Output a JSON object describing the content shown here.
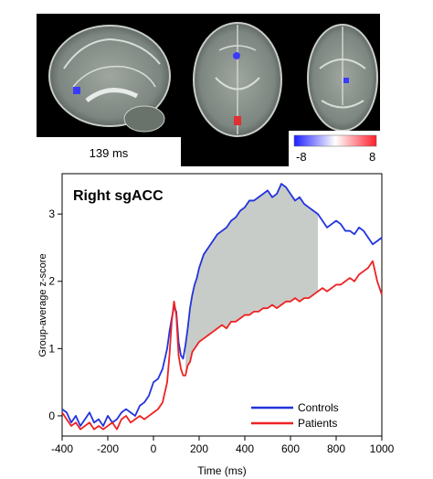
{
  "brain_panel": {
    "time_label": "139 ms",
    "colorbar": {
      "min_label": "-8",
      "max_label": "8",
      "low_color": "#1f1fff",
      "high_color": "#ff1f2d"
    }
  },
  "chart_data": {
    "type": "line",
    "title": "Right sgACC",
    "xlabel": "Time (ms)",
    "ylabel": "Group-average z-score",
    "xlim": [
      -400,
      1000
    ],
    "ylim": [
      -0.3,
      3.6
    ],
    "xticks": [
      -400,
      -200,
      0,
      200,
      400,
      600,
      800,
      1000
    ],
    "yticks": [
      0,
      1,
      2,
      3
    ],
    "legend_position": "bottom-right",
    "grid": false,
    "shaded_region": {
      "x_range": [
        139,
        730
      ],
      "color": "#c8ccc8",
      "between_series": [
        "Controls",
        "Patients"
      ]
    },
    "series": [
      {
        "name": "Controls",
        "color": "#2233dd",
        "x": [
          -400,
          -380,
          -360,
          -340,
          -320,
          -300,
          -280,
          -260,
          -240,
          -220,
          -200,
          -180,
          -160,
          -140,
          -120,
          -100,
          -80,
          -60,
          -40,
          -20,
          0,
          20,
          40,
          60,
          70,
          80,
          90,
          100,
          110,
          120,
          130,
          140,
          150,
          160,
          170,
          180,
          190,
          200,
          220,
          240,
          260,
          280,
          300,
          320,
          340,
          360,
          380,
          400,
          420,
          440,
          460,
          480,
          500,
          520,
          540,
          560,
          580,
          600,
          620,
          640,
          660,
          680,
          700,
          720,
          740,
          760,
          780,
          800,
          820,
          840,
          860,
          880,
          900,
          920,
          940,
          960,
          980,
          1000
        ],
        "y": [
          0.1,
          0.05,
          -0.1,
          0.0,
          -0.15,
          -0.05,
          0.05,
          -0.1,
          -0.05,
          -0.15,
          0.0,
          -0.1,
          -0.05,
          0.05,
          0.1,
          0.05,
          0.0,
          0.15,
          0.2,
          0.3,
          0.5,
          0.55,
          0.7,
          1.0,
          1.25,
          1.45,
          1.62,
          1.55,
          1.1,
          0.9,
          0.85,
          1.05,
          1.3,
          1.6,
          1.8,
          1.95,
          2.05,
          2.2,
          2.4,
          2.5,
          2.6,
          2.7,
          2.75,
          2.8,
          2.9,
          2.95,
          3.05,
          3.1,
          3.2,
          3.2,
          3.25,
          3.3,
          3.35,
          3.25,
          3.3,
          3.45,
          3.4,
          3.3,
          3.2,
          3.25,
          3.15,
          3.1,
          3.05,
          3.0,
          2.9,
          2.8,
          2.85,
          2.9,
          2.85,
          2.75,
          2.75,
          2.7,
          2.8,
          2.75,
          2.65,
          2.55,
          2.6,
          2.65
        ]
      },
      {
        "name": "Patients",
        "color": "#ee2222",
        "x": [
          -400,
          -380,
          -360,
          -340,
          -320,
          -300,
          -280,
          -260,
          -240,
          -220,
          -200,
          -180,
          -160,
          -140,
          -120,
          -100,
          -80,
          -60,
          -40,
          -20,
          0,
          20,
          40,
          60,
          70,
          80,
          90,
          100,
          110,
          120,
          130,
          140,
          150,
          160,
          170,
          180,
          190,
          200,
          220,
          240,
          260,
          280,
          300,
          320,
          340,
          360,
          380,
          400,
          420,
          440,
          460,
          480,
          500,
          520,
          540,
          560,
          580,
          600,
          620,
          640,
          660,
          680,
          700,
          720,
          740,
          760,
          780,
          800,
          820,
          840,
          860,
          880,
          900,
          920,
          940,
          960,
          980,
          1000
        ],
        "y": [
          0.05,
          -0.05,
          -0.15,
          -0.1,
          -0.2,
          -0.15,
          -0.1,
          -0.2,
          -0.15,
          -0.2,
          -0.15,
          -0.1,
          -0.2,
          -0.05,
          0.0,
          -0.1,
          -0.05,
          0.0,
          -0.05,
          0.0,
          0.05,
          0.1,
          0.2,
          0.5,
          0.9,
          1.4,
          1.7,
          1.5,
          0.9,
          0.7,
          0.6,
          0.6,
          0.75,
          0.8,
          0.95,
          1.0,
          1.05,
          1.1,
          1.15,
          1.2,
          1.25,
          1.3,
          1.35,
          1.3,
          1.4,
          1.4,
          1.45,
          1.5,
          1.5,
          1.55,
          1.55,
          1.6,
          1.6,
          1.65,
          1.6,
          1.65,
          1.7,
          1.7,
          1.75,
          1.7,
          1.75,
          1.75,
          1.8,
          1.85,
          1.9,
          1.85,
          1.9,
          1.95,
          1.95,
          2.0,
          2.05,
          2.0,
          2.1,
          2.15,
          2.2,
          2.3,
          2.0,
          1.8
        ]
      }
    ]
  }
}
